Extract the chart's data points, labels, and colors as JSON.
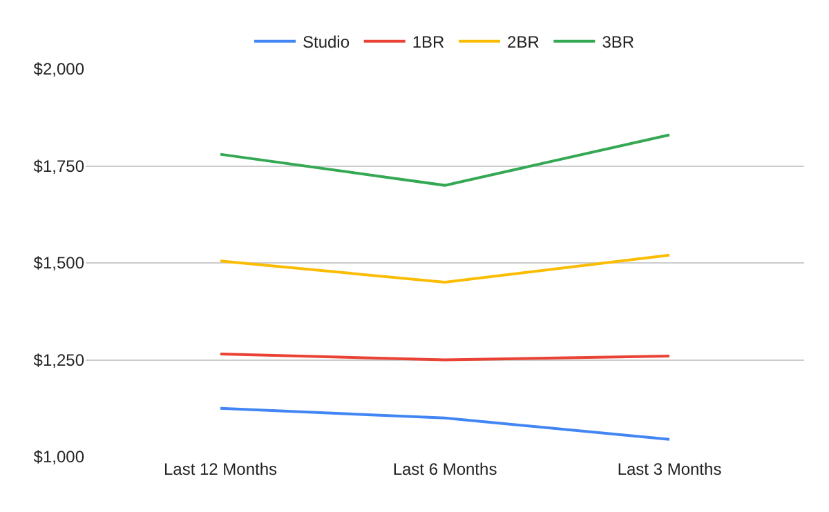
{
  "chart_data": {
    "type": "line",
    "categories": [
      "Last 12 Months",
      "Last 6 Months",
      "Last 3 Months"
    ],
    "series": [
      {
        "name": "Studio",
        "color": "#4285f4",
        "values": [
          1125,
          1100,
          1045
        ]
      },
      {
        "name": "1BR",
        "color": "#ea4335",
        "values": [
          1265,
          1250,
          1260
        ]
      },
      {
        "name": "2BR",
        "color": "#fbbc04",
        "values": [
          1505,
          1450,
          1520
        ]
      },
      {
        "name": "3BR",
        "color": "#34a853",
        "values": [
          1780,
          1700,
          1830
        ]
      }
    ],
    "ylim": [
      1000,
      2000
    ],
    "yticks": [
      {
        "value": 1000,
        "label": "$1,000"
      },
      {
        "value": 1250,
        "label": "$1,250"
      },
      {
        "value": 1500,
        "label": "$1,500"
      },
      {
        "value": 1750,
        "label": "$1,750"
      },
      {
        "value": 2000,
        "label": "$2,000"
      }
    ],
    "grid": "y",
    "legend": "top",
    "marker": "none"
  }
}
